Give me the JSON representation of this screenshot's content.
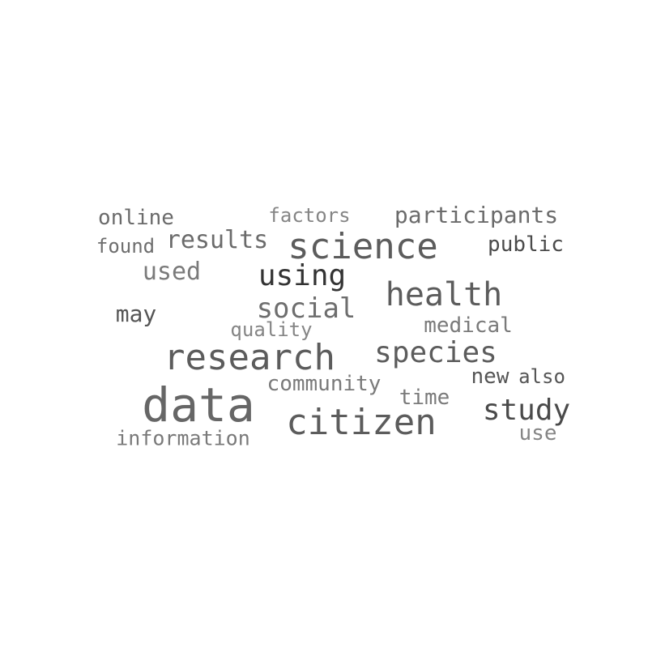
{
  "words": [
    {
      "text": "data",
      "color": "#666666"
    },
    {
      "text": "citizen",
      "color": "#5c5c5c"
    },
    {
      "text": "research",
      "color": "#5c5c5c"
    },
    {
      "text": "science",
      "color": "#5c5c5c"
    },
    {
      "text": "health",
      "color": "#5c5c5c"
    },
    {
      "text": "species",
      "color": "#5c5c5c"
    },
    {
      "text": "study",
      "color": "#4a4a4a"
    },
    {
      "text": "using",
      "color": "#333333"
    },
    {
      "text": "social",
      "color": "#6e6e6e"
    },
    {
      "text": "participants",
      "color": "#6b6b6b"
    },
    {
      "text": "results",
      "color": "#6b6b6b"
    },
    {
      "text": "public",
      "color": "#4a4a4a"
    },
    {
      "text": "used",
      "color": "#7a7a7a"
    },
    {
      "text": "online",
      "color": "#6b6b6b"
    },
    {
      "text": "may",
      "color": "#555555"
    },
    {
      "text": "community",
      "color": "#7a7a7a"
    },
    {
      "text": "information",
      "color": "#7a7a7a"
    },
    {
      "text": "medical",
      "color": "#7a7a7a"
    },
    {
      "text": "quality",
      "color": "#858585"
    },
    {
      "text": "time",
      "color": "#7a7a7a"
    },
    {
      "text": "new",
      "color": "#555555"
    },
    {
      "text": "also",
      "color": "#555555"
    },
    {
      "text": "factors",
      "color": "#858585"
    },
    {
      "text": "found",
      "color": "#6e6e6e"
    },
    {
      "text": "use",
      "color": "#858585"
    }
  ]
}
